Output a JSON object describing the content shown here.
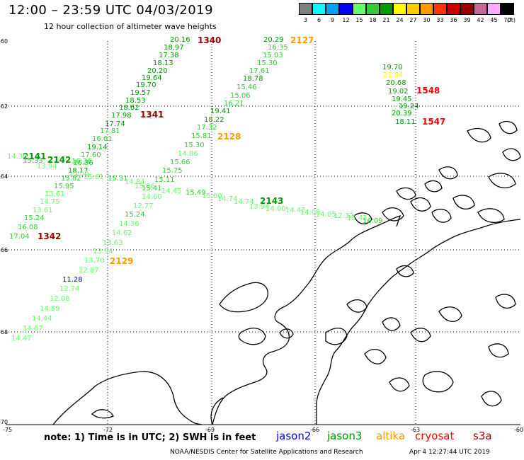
{
  "title": "12:00 – 23:59 UTC 04/03/2019",
  "subtitle": "12 hour collection of altimeter wave heights",
  "legend": {
    "unit": "(ft)",
    "bins": [
      {
        "label": "3",
        "color": "#808080"
      },
      {
        "label": "6",
        "color": "#00ffff"
      },
      {
        "label": "9",
        "color": "#00a0ff"
      },
      {
        "label": "12",
        "color": "#0000ff"
      },
      {
        "label": "15",
        "color": "#66ff66"
      },
      {
        "label": "18",
        "color": "#33cc33"
      },
      {
        "label": "21",
        "color": "#009900"
      },
      {
        "label": "24",
        "color": "#ffff00"
      },
      {
        "label": "27",
        "color": "#ffcc00"
      },
      {
        "label": "30",
        "color": "#ff9900"
      },
      {
        "label": "33",
        "color": "#ff3300"
      },
      {
        "label": "36",
        "color": "#cc0000"
      },
      {
        "label": "39",
        "color": "#990000"
      },
      {
        "label": "42",
        "color": "#cc6699"
      },
      {
        "label": "45",
        "color": "#ffaaff"
      },
      {
        "label": "70",
        "color": "#000000"
      }
    ]
  },
  "axes": {
    "lat_labels": [
      "-60",
      "-62",
      "-64",
      "-66",
      "-68",
      "-70"
    ],
    "lon_labels": [
      "-75",
      "-72",
      "-69",
      "-66",
      "-63",
      "-60"
    ]
  },
  "footer": {
    "note": "note:  1) Time is in UTC;  2) SWH is in feet",
    "satellites": [
      {
        "name": "jason2",
        "color": "#0000ff"
      },
      {
        "name": "jason3",
        "color": "#009900"
      },
      {
        "name": "altika",
        "color": "#ff9900"
      },
      {
        "name": "cryosat",
        "color": "#ff0000"
      },
      {
        "name": "s3a",
        "color": "#990000"
      }
    ],
    "credit": "NOAA/NESDIS Center for Satellite Applications and Research",
    "timestamp": "Apr  4 12:27:44 UTC 2019"
  },
  "tracks": {
    "pass_times": [
      {
        "label": "1340",
        "color": "#990000"
      },
      {
        "label": "2127",
        "color": "#ff9900"
      },
      {
        "label": "1548",
        "color": "#ff0000"
      },
      {
        "label": "1341",
        "color": "#990000"
      },
      {
        "label": "1547",
        "color": "#ff0000"
      },
      {
        "label": "2128",
        "color": "#ff9900"
      },
      {
        "label": "2141",
        "color": "#009900"
      },
      {
        "label": "2142",
        "color": "#009900"
      },
      {
        "label": "2143",
        "color": "#009900"
      },
      {
        "label": "1342",
        "color": "#990000"
      },
      {
        "label": "2129",
        "color": "#ff9900"
      }
    ],
    "swh": [
      {
        "v": "20.16",
        "c": "#009900"
      },
      {
        "v": "18.97",
        "c": "#009900"
      },
      {
        "v": "17.38",
        "c": "#009900"
      },
      {
        "v": "18.13",
        "c": "#009900"
      },
      {
        "v": "20.20",
        "c": "#009900"
      },
      {
        "v": "19.64",
        "c": "#009900"
      },
      {
        "v": "19.70",
        "c": "#009900"
      },
      {
        "v": "19.57",
        "c": "#009900"
      },
      {
        "v": "18.53",
        "c": "#009900"
      },
      {
        "v": "18.62",
        "c": "#009900"
      },
      {
        "v": "17.98",
        "c": "#009900"
      },
      {
        "v": "17.74",
        "c": "#009900"
      },
      {
        "v": "17.81",
        "c": "#33cc33"
      },
      {
        "v": "16.61",
        "c": "#33cc33"
      },
      {
        "v": "19.14",
        "c": "#009900"
      },
      {
        "v": "17.60",
        "c": "#33cc33"
      },
      {
        "v": "16.36",
        "c": "#33cc33"
      },
      {
        "v": "18.17",
        "c": "#009900"
      },
      {
        "v": "15.82",
        "c": "#33cc33"
      },
      {
        "v": "15.95",
        "c": "#33cc33"
      },
      {
        "v": "13.61",
        "c": "#66ff66"
      },
      {
        "v": "14.75",
        "c": "#66ff66"
      },
      {
        "v": "13.61",
        "c": "#66ff66"
      },
      {
        "v": "15.24",
        "c": "#33cc33"
      },
      {
        "v": "16.08",
        "c": "#33cc33"
      },
      {
        "v": "17.04",
        "c": "#33cc33"
      },
      {
        "v": "14.30",
        "c": "#66ff66"
      },
      {
        "v": "15.33",
        "c": "#33cc33"
      },
      {
        "v": "13.94",
        "c": "#66ff66"
      },
      {
        "v": "16.36",
        "c": "#33cc33"
      },
      {
        "v": "15.56",
        "c": "#66ff66"
      },
      {
        "v": "15.61",
        "c": "#66ff66"
      },
      {
        "v": "20.29",
        "c": "#009900"
      },
      {
        "v": "16.35",
        "c": "#33cc33"
      },
      {
        "v": "15.03",
        "c": "#33cc33"
      },
      {
        "v": "15.30",
        "c": "#33cc33"
      },
      {
        "v": "17.61",
        "c": "#33cc33"
      },
      {
        "v": "18.78",
        "c": "#009900"
      },
      {
        "v": "15.46",
        "c": "#33cc33"
      },
      {
        "v": "15.06",
        "c": "#33cc33"
      },
      {
        "v": "16.21",
        "c": "#33cc33"
      },
      {
        "v": "19.41",
        "c": "#009900"
      },
      {
        "v": "18.22",
        "c": "#009900"
      },
      {
        "v": "17.32",
        "c": "#33cc33"
      },
      {
        "v": "15.81",
        "c": "#33cc33"
      },
      {
        "v": "15.30",
        "c": "#33cc33"
      },
      {
        "v": "14.86",
        "c": "#66ff66"
      },
      {
        "v": "15.66",
        "c": "#33cc33"
      },
      {
        "v": "15.75",
        "c": "#33cc33"
      },
      {
        "v": "15.11",
        "c": "#33cc33"
      },
      {
        "v": "15.31",
        "c": "#33cc33"
      },
      {
        "v": "14.84",
        "c": "#66ff66"
      },
      {
        "v": "15.86",
        "c": "#66ff66"
      },
      {
        "v": "15.41",
        "c": "#33cc33"
      },
      {
        "v": "14.45",
        "c": "#66ff66"
      },
      {
        "v": "15.49",
        "c": "#33cc33"
      },
      {
        "v": "14.60",
        "c": "#66ff66"
      },
      {
        "v": "12.77",
        "c": "#66ff66"
      },
      {
        "v": "15.24",
        "c": "#33cc33"
      },
      {
        "v": "14.36",
        "c": "#66ff66"
      },
      {
        "v": "14.62",
        "c": "#66ff66"
      },
      {
        "v": "13.63",
        "c": "#66ff66"
      },
      {
        "v": "13.94",
        "c": "#66ff66"
      },
      {
        "v": "13.70",
        "c": "#66ff66"
      },
      {
        "v": "12.87",
        "c": "#66ff66"
      },
      {
        "v": "11.28",
        "c": "#0000ff"
      },
      {
        "v": "12.74",
        "c": "#66ff66"
      },
      {
        "v": "12.08",
        "c": "#66ff66"
      },
      {
        "v": "14.59",
        "c": "#66ff66"
      },
      {
        "v": "14.44",
        "c": "#66ff66"
      },
      {
        "v": "14.67",
        "c": "#66ff66"
      },
      {
        "v": "14.47",
        "c": "#66ff66"
      },
      {
        "v": "15.00",
        "c": "#66ff66"
      },
      {
        "v": "14.74",
        "c": "#66ff66"
      },
      {
        "v": "14.74",
        "c": "#66ff66"
      },
      {
        "v": "13.94",
        "c": "#66ff66"
      },
      {
        "v": "14.00",
        "c": "#66ff66"
      },
      {
        "v": "14.42",
        "c": "#66ff66"
      },
      {
        "v": "14.08",
        "c": "#66ff66"
      },
      {
        "v": "14.05",
        "c": "#66ff66"
      },
      {
        "v": "12.32",
        "c": "#66ff66"
      },
      {
        "v": "12.42",
        "c": "#66ff66"
      },
      {
        "v": "16.09",
        "c": "#33cc33"
      },
      {
        "v": "19.70",
        "c": "#009900"
      },
      {
        "v": "21.94",
        "c": "#ffff00"
      },
      {
        "v": "20.68",
        "c": "#009900"
      },
      {
        "v": "19.02",
        "c": "#009900"
      },
      {
        "v": "19.45",
        "c": "#009900"
      },
      {
        "v": "19.24",
        "c": "#009900"
      },
      {
        "v": "20.39",
        "c": "#009900"
      },
      {
        "v": "18.11",
        "c": "#009900"
      }
    ]
  }
}
